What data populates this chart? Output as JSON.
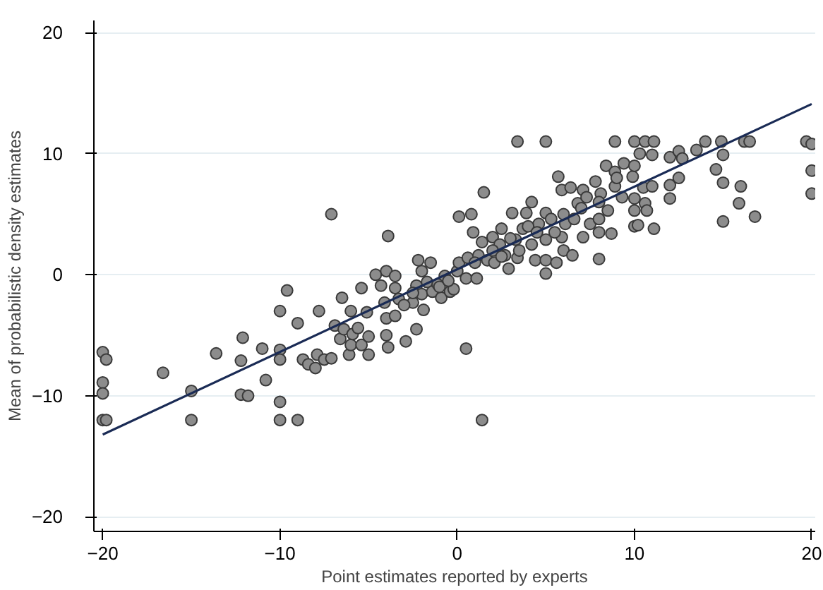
{
  "chart_data": {
    "type": "scatter",
    "xlabel": "Point estimates reported by experts",
    "ylabel": "Mean of probabilistic density estimates",
    "xlim": [
      -20.5,
      20.2
    ],
    "ylim": [
      -21.2,
      21
    ],
    "xticks": [
      {
        "value": -20,
        "label": "−20"
      },
      {
        "value": -10,
        "label": "−10"
      },
      0,
      10,
      20
    ],
    "yticks": [
      {
        "value": -20,
        "label": "−20"
      },
      {
        "value": -10,
        "label": "−10"
      },
      0,
      10,
      20
    ],
    "grid": "y",
    "marker": "circle",
    "series": [
      {
        "color": "#8c8c8c",
        "x": [
          -20,
          -19.8,
          -20,
          -20,
          -20,
          -19.8,
          -16.6,
          -15,
          -15,
          -13.6,
          -12.1,
          -12.2,
          -12.2,
          -11.8,
          -11,
          -10.8,
          -10,
          -10,
          -10,
          -10,
          -10,
          -9.6,
          -9.0,
          -9.0,
          -7.8,
          -8.7,
          -8.4,
          -8.0,
          -7.9,
          -7.5,
          -7.1,
          -7.1,
          -6.9,
          -6.6,
          -6.5,
          -6.4,
          -6.1,
          -6.0,
          -6.0,
          -5.9,
          -5.6,
          -5.4,
          -5.4,
          -5.1,
          -5.0,
          -5.0,
          -4.6,
          -4.3,
          -4.1,
          -4.0,
          -4.0,
          -4.0,
          -3.9,
          -3.9,
          -3.5,
          -3.5,
          -3.5,
          -3.3,
          -2.9,
          -2.5,
          -2.3,
          -2.3,
          -2.2,
          -2.0,
          -1.9,
          -2.0,
          -1.7,
          -1.5,
          -1.4,
          -1.1,
          -0.9,
          -0.7,
          -0.4,
          -0.2,
          0,
          0.1,
          0.1,
          0.5,
          0.8,
          0.5,
          0.6,
          0.9,
          1.1,
          1.2,
          1.4,
          1.5,
          1.4,
          1.7,
          2.0,
          2.1,
          2.4,
          2.5,
          2.7,
          2.9,
          3.1,
          3.4,
          3.3,
          3.4,
          3.7,
          3.9,
          4.2,
          4.2,
          4.4,
          4.6,
          5,
          5,
          5,
          5,
          5,
          5.3,
          5.6,
          5.7,
          5.9,
          5.9,
          6.0,
          6.1,
          6.4,
          6.5,
          6.6,
          6.8,
          7.1,
          7.1,
          7.3,
          7.5,
          7.8,
          8,
          8,
          8,
          8.1,
          8.4,
          8.5,
          8.7,
          8.9,
          8.9,
          8.9,
          9.3,
          9.4,
          9.9,
          10,
          10,
          10,
          10,
          10,
          10.2,
          10.3,
          10.5,
          10.6,
          10.6,
          10.7,
          11.0,
          11.1,
          11.1,
          11.0,
          12,
          12,
          12,
          12.5,
          12.5,
          12.7,
          13.5,
          14.0,
          14.6,
          14.9,
          15,
          15,
          15,
          15.9,
          16,
          16.2,
          16.5,
          16.8,
          19.7,
          20,
          20,
          20,
          3,
          4,
          2,
          3.5,
          4.5,
          1,
          -1,
          -0.5,
          2.5,
          6,
          7,
          5.5,
          8,
          9,
          -3,
          -2.5
        ],
        "values": [
          -6.4,
          -7.0,
          -8.9,
          -9.8,
          -12,
          -12,
          -8.1,
          -9.6,
          -12,
          -6.5,
          -5.2,
          -7.1,
          -9.9,
          -10,
          -6.1,
          -8.7,
          -3.0,
          -6.2,
          -7.0,
          -10.5,
          -12,
          -1.3,
          -4.0,
          -12,
          -3.0,
          -7.0,
          -7.4,
          -7.7,
          -6.6,
          -7.0,
          -6.9,
          5.0,
          -4.2,
          -5.3,
          -1.9,
          -4.5,
          -6.6,
          -5.8,
          -3.0,
          -4.9,
          -4.4,
          -1.1,
          -5.8,
          -3.1,
          -5.1,
          -6.6,
          0,
          -0.9,
          -2.3,
          0.3,
          -3.6,
          -5.0,
          -6.0,
          3.2,
          -0.1,
          -1.1,
          -3.4,
          -2.0,
          -5.5,
          -2.3,
          -4.5,
          -0.9,
          1.2,
          0.3,
          -2.9,
          -1.6,
          -0.6,
          1.0,
          -1.4,
          -0.8,
          -1.9,
          -0.1,
          -1.4,
          -1.2,
          0.3,
          1.0,
          4.8,
          -6.1,
          5.0,
          -0.3,
          1.4,
          3.5,
          -0.3,
          1.6,
          -12,
          6.8,
          2.7,
          1.2,
          3.1,
          1.0,
          2.5,
          3.8,
          1.6,
          0.5,
          5.1,
          11,
          2.9,
          1.4,
          3.8,
          5.1,
          6.0,
          2.5,
          1.2,
          4.2,
          11,
          0.1,
          1.2,
          5.1,
          2.9,
          4.6,
          1.0,
          8.1,
          7.0,
          3.1,
          2.0,
          4.2,
          7.2,
          1.6,
          4.6,
          5.9,
          7.0,
          3.1,
          6.4,
          4.2,
          7.7,
          1.3,
          4.6,
          3.5,
          6.7,
          9.0,
          5.3,
          3.4,
          7.3,
          11,
          8.5,
          6.4,
          9.2,
          8.1,
          11,
          9.0,
          6.3,
          5.3,
          4.0,
          4.1,
          10.0,
          7.2,
          11,
          5.9,
          5.3,
          7.3,
          3.8,
          11,
          9.9,
          9.7,
          7.4,
          6.3,
          10.2,
          8.0,
          9.6,
          10.3,
          11,
          8.7,
          11,
          9.9,
          7.6,
          4.4,
          5.9,
          7.3,
          11,
          11,
          4.8,
          11,
          10.8,
          8.6,
          6.7,
          3,
          4,
          2,
          2,
          3.5,
          1,
          -1,
          -0.5,
          1.5,
          5,
          5.5,
          3.5,
          6,
          8,
          -2.5,
          -1.5
        ]
      },
      {
        "type": "line",
        "color": "#1a2b55",
        "marker": "none",
        "x": [
          -20,
          20
        ],
        "values": [
          -13.2,
          14.1
        ]
      }
    ]
  }
}
